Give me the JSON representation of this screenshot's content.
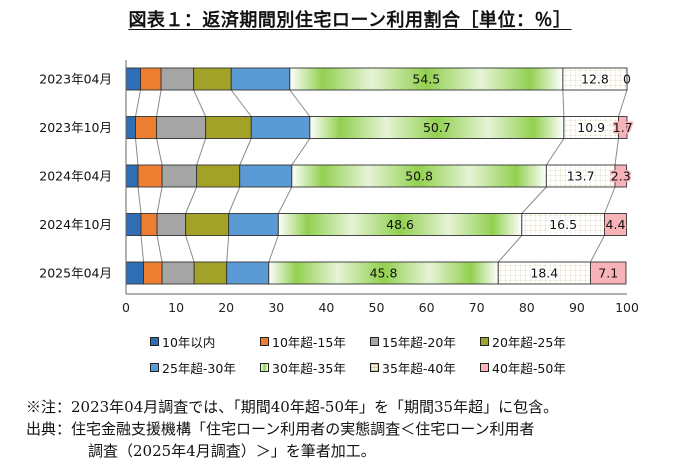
{
  "title": "図表１：返済期間別住宅ローン利用割合［単位：％］",
  "chart_data": {
    "type": "bar",
    "orientation": "horizontal",
    "stacked": true,
    "categories": [
      "2023年04月",
      "2023年10月",
      "2024年04月",
      "2024年10月",
      "2025年04月"
    ],
    "series": [
      {
        "name": "10年以内",
        "values": [
          2.9,
          1.9,
          2.4,
          3.0,
          3.5
        ],
        "color": "#2f6db5"
      },
      {
        "name": "10年超-15年",
        "values": [
          4.1,
          4.2,
          4.8,
          3.2,
          3.7
        ],
        "color": "#ed7d31"
      },
      {
        "name": "15年超-20年",
        "values": [
          6.5,
          9.8,
          6.9,
          5.7,
          6.4
        ],
        "color": "#a5a5a5"
      },
      {
        "name": "20年超-25年",
        "values": [
          7.5,
          9.1,
          8.6,
          8.6,
          6.5
        ],
        "color": "#a2a228"
      },
      {
        "name": "25年超-30年",
        "values": [
          11.7,
          11.7,
          10.4,
          9.9,
          8.4
        ],
        "color": "#5b9bd5"
      },
      {
        "name": "30年超-35年",
        "values": [
          54.5,
          50.7,
          50.8,
          48.6,
          45.8
        ],
        "color": "#92d050"
      },
      {
        "name": "35年超-40年",
        "values": [
          12.8,
          10.9,
          13.7,
          16.5,
          18.4
        ],
        "color": "#ffffff"
      },
      {
        "name": "40年超-50年",
        "values": [
          0,
          1.7,
          2.3,
          4.4,
          7.1
        ],
        "color": "#f7b3b8"
      }
    ],
    "data_labels": {
      "30年超-35年": [
        "54.5",
        "50.7",
        "50.8",
        "48.6",
        "45.8"
      ],
      "35年超-40年": [
        "12.8",
        "10.9",
        "13.7",
        "16.5",
        "18.4"
      ],
      "40年超-50年": [
        "0",
        "1.7",
        "2.3",
        "4.4",
        "7.1"
      ]
    },
    "xlim": [
      0,
      100
    ],
    "xticks": [
      0,
      10,
      20,
      30,
      40,
      50,
      60,
      70,
      80,
      90,
      100
    ],
    "grid": false,
    "legend_position": "bottom",
    "series_lines": true
  },
  "notes": {
    "note": "※注：2023年04月調査では、「期間40年超-50年」を「期間35年超」に包含。",
    "source_line1": "出典：住宅金融支援機構「住宅ローン利用者の実態調査＜住宅ローン利用者",
    "source_line2": "調査（2025年4月調査）＞」を筆者加工。"
  }
}
